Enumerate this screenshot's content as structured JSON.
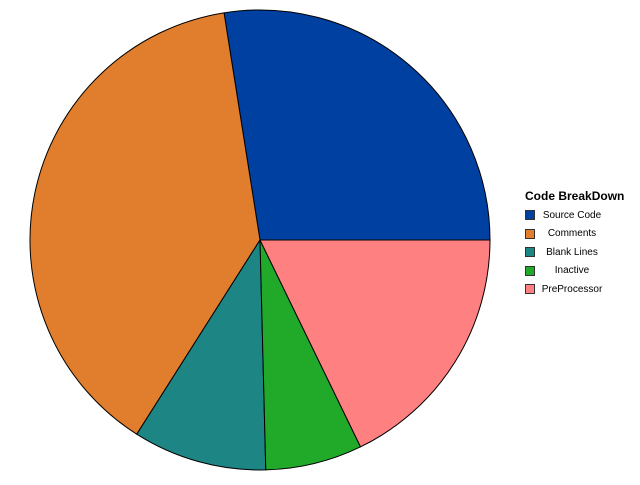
{
  "chart_data": {
    "type": "pie",
    "title": "",
    "legend": {
      "title": "Code BreakDown",
      "placement": "right"
    },
    "slices": [
      {
        "label": "Source Code",
        "value": 27.5,
        "color": "#0040A0"
      },
      {
        "label": "Comments",
        "value": 38.5,
        "color": "#E07E2E"
      },
      {
        "label": "Blank Lines",
        "value": 9.4,
        "color": "#1E8585"
      },
      {
        "label": "Inactive",
        "value": 6.8,
        "color": "#21AA2A"
      },
      {
        "label": "PreProcessor",
        "value": 17.8,
        "color": "#FF8080"
      }
    ],
    "start_angle_deg": 0,
    "direction": "counterclockwise"
  }
}
